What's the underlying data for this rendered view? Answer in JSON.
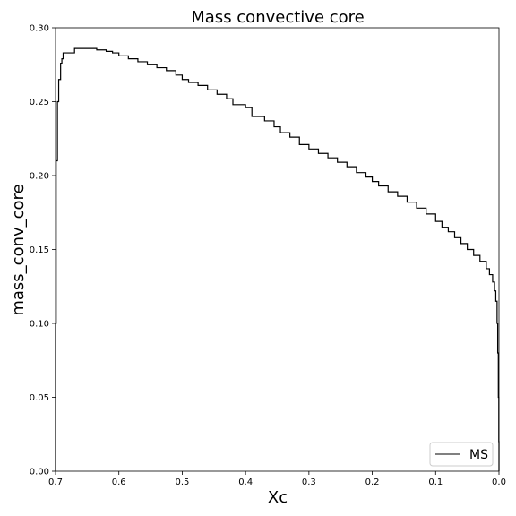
{
  "chart_data": {
    "type": "line",
    "title": "Mass convective core",
    "xlabel": "Xc",
    "ylabel": "mass_conv_core",
    "xlim": [
      0.7,
      0.0
    ],
    "ylim": [
      0.0,
      0.3
    ],
    "x_reversed": true,
    "x_ticks": [
      "0.7",
      "0.6",
      "0.5",
      "0.4",
      "0.3",
      "0.2",
      "0.1",
      "0.0"
    ],
    "y_ticks": [
      "0.00",
      "0.05",
      "0.10",
      "0.15",
      "0.20",
      "0.25",
      "0.30"
    ],
    "grid": false,
    "legend": {
      "placement": "lower-right",
      "entries": [
        "MS"
      ]
    },
    "series": [
      {
        "name": "MS",
        "color": "#000000",
        "step": true,
        "points": [
          [
            0.7,
            0.0
          ],
          [
            0.7,
            0.1
          ],
          [
            0.699,
            0.21
          ],
          [
            0.697,
            0.25
          ],
          [
            0.695,
            0.265
          ],
          [
            0.692,
            0.276
          ],
          [
            0.69,
            0.279
          ],
          [
            0.688,
            0.283
          ],
          [
            0.67,
            0.286
          ],
          [
            0.65,
            0.286
          ],
          [
            0.635,
            0.285
          ],
          [
            0.62,
            0.284
          ],
          [
            0.61,
            0.283
          ],
          [
            0.6,
            0.281
          ],
          [
            0.585,
            0.279
          ],
          [
            0.57,
            0.277
          ],
          [
            0.555,
            0.275
          ],
          [
            0.54,
            0.273
          ],
          [
            0.525,
            0.271
          ],
          [
            0.51,
            0.268
          ],
          [
            0.5,
            0.265
          ],
          [
            0.49,
            0.263
          ],
          [
            0.475,
            0.261
          ],
          [
            0.46,
            0.258
          ],
          [
            0.445,
            0.255
          ],
          [
            0.43,
            0.252
          ],
          [
            0.42,
            0.248
          ],
          [
            0.4,
            0.246
          ],
          [
            0.39,
            0.24
          ],
          [
            0.37,
            0.237
          ],
          [
            0.355,
            0.233
          ],
          [
            0.345,
            0.229
          ],
          [
            0.33,
            0.226
          ],
          [
            0.315,
            0.221
          ],
          [
            0.3,
            0.218
          ],
          [
            0.285,
            0.215
          ],
          [
            0.27,
            0.212
          ],
          [
            0.255,
            0.209
          ],
          [
            0.24,
            0.206
          ],
          [
            0.225,
            0.202
          ],
          [
            0.21,
            0.199
          ],
          [
            0.2,
            0.196
          ],
          [
            0.19,
            0.193
          ],
          [
            0.175,
            0.189
          ],
          [
            0.16,
            0.186
          ],
          [
            0.145,
            0.182
          ],
          [
            0.13,
            0.178
          ],
          [
            0.115,
            0.174
          ],
          [
            0.1,
            0.169
          ],
          [
            0.09,
            0.165
          ],
          [
            0.08,
            0.162
          ],
          [
            0.07,
            0.158
          ],
          [
            0.06,
            0.154
          ],
          [
            0.05,
            0.15
          ],
          [
            0.04,
            0.146
          ],
          [
            0.03,
            0.142
          ],
          [
            0.02,
            0.137
          ],
          [
            0.015,
            0.133
          ],
          [
            0.01,
            0.128
          ],
          [
            0.007,
            0.122
          ],
          [
            0.005,
            0.115
          ],
          [
            0.003,
            0.1
          ],
          [
            0.002,
            0.08
          ],
          [
            0.001,
            0.05
          ],
          [
            0.0003,
            0.02
          ],
          [
            0.0,
            0.0
          ]
        ]
      }
    ]
  }
}
